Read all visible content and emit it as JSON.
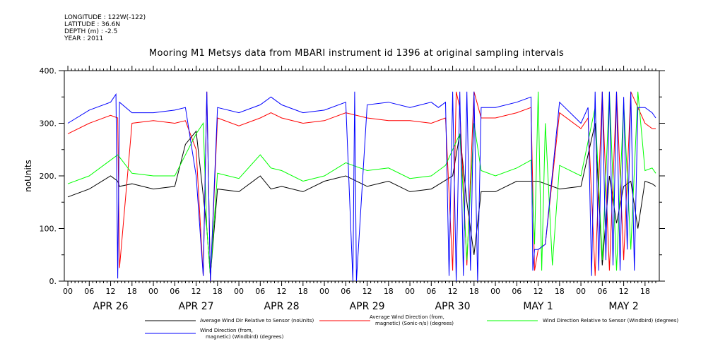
{
  "meta": {
    "longitude": "LONGITUDE : 122W(-122)",
    "latitude": "LATITUDE : 36.6N",
    "depth": "DEPTH (m) : -2.5",
    "year": "YEAR : 2011"
  },
  "chart_data": {
    "type": "line",
    "title": "Mooring M1 Metsys data from MBARI instrument id 1396 at original sampling intervals",
    "ylabel": "noUnits",
    "ylim": [
      0,
      400
    ],
    "yticks": [
      0,
      100,
      200,
      300,
      400
    ],
    "ytick_labels": [
      "0.",
      "100.",
      "200.",
      "300.",
      "400."
    ],
    "x_unit": "hours since APR 26 00",
    "xlim": [
      -1,
      166
    ],
    "hour_ticks": [
      "00",
      "06",
      "12",
      "18"
    ],
    "day_labels": [
      "APR 26",
      "APR 27",
      "APR 28",
      "APR 29",
      "APR 30",
      "MAY  1",
      "MAY  2"
    ],
    "grid": false,
    "legend_position": "bottom",
    "series": [
      {
        "name": "Average Wind Dir Relative to Sensor (noUnits)",
        "color": "#000000",
        "x": [
          0,
          6,
          12,
          14,
          14.5,
          18,
          24,
          30,
          33,
          36,
          39,
          40,
          42,
          48,
          54,
          57,
          60,
          66,
          72,
          78,
          84,
          90,
          96,
          102,
          108,
          110,
          112,
          114,
          116,
          120,
          126,
          132,
          138,
          144,
          148,
          150,
          152,
          154,
          156,
          158,
          160,
          162,
          164,
          165
        ],
        "y": [
          160,
          175,
          200,
          190,
          180,
          185,
          175,
          180,
          260,
          285,
          100,
          10,
          175,
          170,
          200,
          175,
          180,
          170,
          190,
          200,
          180,
          190,
          170,
          175,
          200,
          280,
          150,
          50,
          170,
          170,
          190,
          190,
          175,
          180,
          300,
          30,
          200,
          110,
          180,
          190,
          100,
          190,
          185,
          180
        ]
      },
      {
        "name": "Average Wind Direction (from, magnetic) (Sonic-n/s) (degrees)",
        "color": "#ff0000",
        "x": [
          0,
          6,
          12,
          14,
          14.5,
          18,
          24,
          30,
          33,
          36,
          38,
          39,
          40,
          42,
          48,
          54,
          57,
          60,
          66,
          72,
          78,
          84,
          90,
          96,
          102,
          106,
          108,
          109,
          110,
          112,
          114,
          116,
          120,
          126,
          130,
          131,
          132,
          134,
          138,
          144,
          146,
          148,
          150,
          152,
          154,
          156,
          158,
          160,
          162,
          164,
          165
        ],
        "y": [
          280,
          300,
          315,
          310,
          25,
          300,
          305,
          300,
          305,
          250,
          10,
          360,
          0,
          310,
          295,
          310,
          320,
          310,
          300,
          305,
          320,
          310,
          305,
          305,
          300,
          310,
          20,
          360,
          330,
          30,
          360,
          310,
          310,
          320,
          330,
          20,
          60,
          70,
          320,
          290,
          310,
          10,
          360,
          20,
          360,
          40,
          360,
          330,
          300,
          290,
          290
        ]
      },
      {
        "name": "Wind Direction Relative to Sensor (Windbird) (degrees)",
        "color": "#00ff00",
        "x": [
          0,
          6,
          12,
          14,
          18,
          24,
          30,
          33,
          36,
          38,
          39,
          40,
          42,
          48,
          54,
          57,
          60,
          66,
          72,
          78,
          84,
          90,
          96,
          102,
          106,
          108,
          110,
          112,
          114,
          116,
          120,
          126,
          130,
          131,
          132,
          133,
          134,
          136,
          138,
          144,
          148,
          150,
          152,
          154,
          156,
          158,
          160,
          162,
          164,
          165
        ],
        "y": [
          185,
          200,
          230,
          240,
          205,
          200,
          200,
          240,
          280,
          300,
          100,
          10,
          205,
          195,
          240,
          215,
          210,
          190,
          200,
          225,
          210,
          215,
          195,
          200,
          220,
          250,
          280,
          40,
          300,
          210,
          200,
          215,
          230,
          70,
          360,
          20,
          300,
          30,
          220,
          200,
          330,
          40,
          360,
          20,
          340,
          60,
          360,
          210,
          215,
          205
        ]
      },
      {
        "name": "Wind Direction (from, magnetic) (Windbird) (degrees)",
        "color": "#0000ff",
        "x": [
          0,
          6,
          12,
          13.5,
          14,
          14.5,
          18,
          24,
          30,
          33,
          36,
          38,
          39,
          40,
          42,
          48,
          54,
          57,
          60,
          66,
          72,
          78,
          80,
          80.5,
          81,
          84,
          90,
          96,
          102,
          104,
          106,
          107,
          108,
          109,
          110,
          111,
          112,
          113,
          114,
          115,
          116,
          120,
          126,
          130,
          130.5,
          131,
          132,
          134,
          138,
          144,
          146,
          147,
          148,
          149,
          150,
          151,
          152,
          153,
          154,
          155,
          156,
          157,
          158,
          159,
          160,
          162,
          164,
          165
        ],
        "y": [
          300,
          325,
          340,
          355,
          5,
          340,
          320,
          320,
          325,
          330,
          200,
          10,
          360,
          0,
          330,
          320,
          335,
          350,
          335,
          320,
          325,
          340,
          0,
          360,
          0,
          335,
          340,
          330,
          340,
          330,
          340,
          10,
          360,
          0,
          360,
          10,
          360,
          20,
          360,
          0,
          330,
          330,
          340,
          350,
          20,
          60,
          60,
          70,
          340,
          300,
          330,
          10,
          360,
          20,
          360,
          40,
          360,
          30,
          360,
          20,
          350,
          60,
          360,
          20,
          330,
          330,
          320,
          310
        ]
      }
    ]
  },
  "legend": [
    {
      "line1": "Average Wind Dir Relative to Sensor (noUnits)",
      "line2": ""
    },
    {
      "line1": "Average Wind Direction (from,",
      "line2": "magnetic) (Sonic-n/s) (degrees)"
    },
    {
      "line1": "Wind Direction Relative to Sensor (Windbird) (degrees)",
      "line2": ""
    },
    {
      "line1": "Wind Direction (from,",
      "line2": "magnetic) (Windbird) (degrees)"
    }
  ]
}
